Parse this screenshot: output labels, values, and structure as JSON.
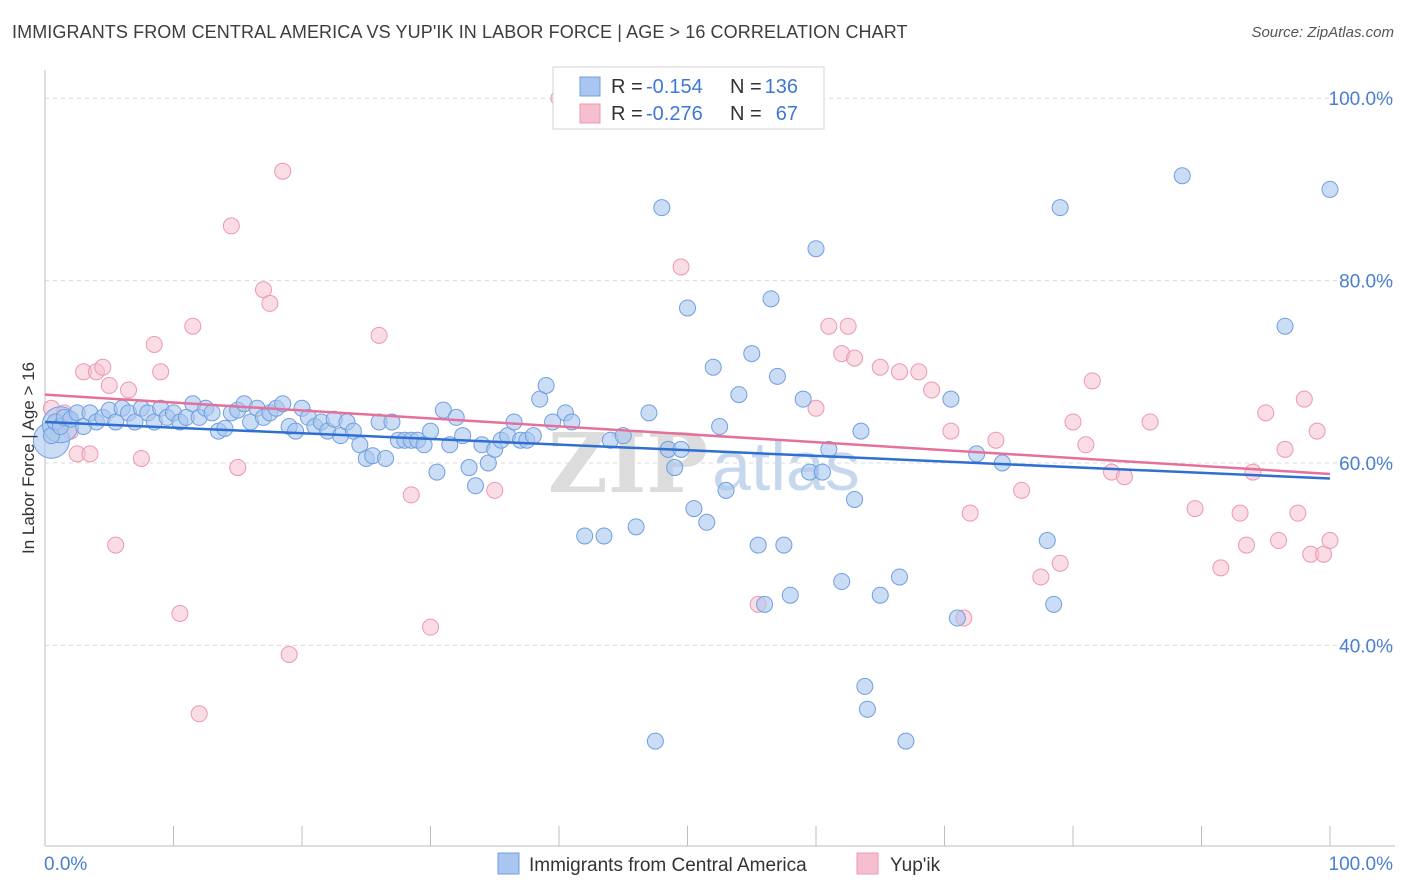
{
  "header": {
    "title": "IMMIGRANTS FROM CENTRAL AMERICA VS YUP'IK IN LABOR FORCE | AGE > 16 CORRELATION CHART",
    "source": "Source: ZipAtlas.com"
  },
  "watermark": {
    "part1": "ZIP",
    "part2": "atlas"
  },
  "colors": {
    "blue_fill": "#a8c6ef",
    "blue_stroke": "#6f9fe0",
    "blue_line": "#2f6fd0",
    "pink_fill": "#f6bfd0",
    "pink_stroke": "#ec98b2",
    "pink_line": "#e5709a",
    "grid": "#dadada",
    "tick_label": "#4a7fd0"
  },
  "legend": {
    "rows": [
      {
        "r_label": "R =",
        "r_value": "-0.154",
        "n_label": "N =",
        "n_value": "136"
      },
      {
        "r_label": "R =",
        "r_value": "-0.276",
        "n_label": "N =",
        "n_value": "67"
      }
    ]
  },
  "chart_data": {
    "type": "scatter",
    "title": "IMMIGRANTS FROM CENTRAL AMERICA VS YUP'IK IN LABOR FORCE | AGE > 16 CORRELATION CHART",
    "xlabel": "",
    "ylabel": "In Labor Force | Age > 16",
    "xlim": [
      0,
      100
    ],
    "ylim": [
      18,
      102
    ],
    "x_tick_labels": [
      "0.0%",
      "100.0%"
    ],
    "y_ticks": [
      40,
      60,
      80,
      100
    ],
    "y_tick_labels": [
      "40.0%",
      "60.0%",
      "80.0%",
      "100.0%"
    ],
    "grid": true,
    "legend_position": "top-center",
    "series": [
      {
        "name": "Immigrants from Central America",
        "color": "#a8c6ef",
        "trend": {
          "x": [
            0,
            100
          ],
          "y": [
            64.5,
            58.3
          ]
        },
        "points": [
          [
            0.5,
            63.0
          ],
          [
            0.8,
            64.5
          ],
          [
            1.2,
            64.0
          ],
          [
            1.5,
            65.0
          ],
          [
            2.0,
            64.8
          ],
          [
            2.5,
            65.5
          ],
          [
            3.0,
            64.0
          ],
          [
            3.5,
            65.5
          ],
          [
            4.0,
            64.5
          ],
          [
            4.5,
            65.0
          ],
          [
            5.0,
            65.8
          ],
          [
            5.5,
            64.5
          ],
          [
            6.0,
            66.0
          ],
          [
            6.5,
            65.5
          ],
          [
            7.0,
            64.5
          ],
          [
            7.5,
            66.0
          ],
          [
            8.0,
            65.5
          ],
          [
            8.5,
            64.5
          ],
          [
            9.0,
            66.0
          ],
          [
            9.5,
            65.0
          ],
          [
            10.0,
            65.5
          ],
          [
            10.5,
            64.5
          ],
          [
            11.0,
            65.0
          ],
          [
            11.5,
            66.5
          ],
          [
            12.0,
            65.0
          ],
          [
            12.5,
            66.0
          ],
          [
            13.0,
            65.5
          ],
          [
            13.5,
            63.5
          ],
          [
            14.0,
            63.8
          ],
          [
            14.5,
            65.5
          ],
          [
            15.0,
            65.8
          ],
          [
            15.5,
            66.5
          ],
          [
            16.0,
            64.5
          ],
          [
            16.5,
            66.0
          ],
          [
            17.0,
            65.0
          ],
          [
            17.5,
            65.5
          ],
          [
            18.0,
            66.0
          ],
          [
            18.5,
            66.5
          ],
          [
            19.0,
            64.0
          ],
          [
            19.5,
            63.5
          ],
          [
            20.0,
            66.0
          ],
          [
            20.5,
            65.0
          ],
          [
            21.0,
            64.0
          ],
          [
            21.5,
            64.5
          ],
          [
            22.0,
            63.5
          ],
          [
            22.5,
            64.8
          ],
          [
            23.0,
            63.0
          ],
          [
            23.5,
            64.5
          ],
          [
            24.0,
            63.5
          ],
          [
            24.5,
            62.0
          ],
          [
            25.0,
            60.5
          ],
          [
            25.5,
            60.8
          ],
          [
            26.0,
            64.5
          ],
          [
            26.5,
            60.5
          ],
          [
            27.0,
            64.5
          ],
          [
            27.5,
            62.5
          ],
          [
            28.0,
            62.5
          ],
          [
            28.5,
            62.5
          ],
          [
            29.0,
            62.5
          ],
          [
            29.5,
            62.0
          ],
          [
            30.0,
            63.5
          ],
          [
            30.5,
            59.0
          ],
          [
            31.0,
            65.8
          ],
          [
            31.5,
            62.0
          ],
          [
            32.0,
            65.0
          ],
          [
            32.5,
            63.0
          ],
          [
            33.0,
            59.5
          ],
          [
            33.5,
            57.5
          ],
          [
            34.0,
            62.0
          ],
          [
            34.5,
            60.0
          ],
          [
            35.0,
            61.5
          ],
          [
            35.5,
            62.5
          ],
          [
            36.0,
            63.0
          ],
          [
            36.5,
            64.5
          ],
          [
            37.0,
            62.5
          ],
          [
            37.5,
            62.5
          ],
          [
            38.0,
            63.0
          ],
          [
            38.5,
            67.0
          ],
          [
            39.0,
            68.5
          ],
          [
            39.5,
            64.5
          ],
          [
            40.5,
            65.5
          ],
          [
            41.0,
            64.5
          ],
          [
            42.0,
            52.0
          ],
          [
            43.5,
            52.0
          ],
          [
            44.0,
            62.5
          ],
          [
            45.0,
            63.0
          ],
          [
            46.0,
            53.0
          ],
          [
            47.0,
            65.5
          ],
          [
            47.5,
            29.5
          ],
          [
            48.0,
            88.0
          ],
          [
            48.5,
            61.5
          ],
          [
            49.0,
            59.5
          ],
          [
            49.5,
            61.5
          ],
          [
            50.0,
            77.0
          ],
          [
            50.5,
            55.0
          ],
          [
            51.5,
            53.5
          ],
          [
            52.0,
            70.5
          ],
          [
            52.5,
            64.0
          ],
          [
            53.0,
            57.0
          ],
          [
            54.0,
            67.5
          ],
          [
            55.0,
            72.0
          ],
          [
            55.5,
            51.0
          ],
          [
            56.0,
            44.5
          ],
          [
            56.5,
            78.0
          ],
          [
            57.0,
            69.5
          ],
          [
            57.5,
            51.0
          ],
          [
            58.0,
            45.5
          ],
          [
            59.0,
            67.0
          ],
          [
            59.5,
            59.0
          ],
          [
            60.0,
            83.5
          ],
          [
            60.5,
            59.0
          ],
          [
            61.0,
            61.5
          ],
          [
            62.0,
            47.0
          ],
          [
            63.0,
            56.0
          ],
          [
            63.5,
            63.5
          ],
          [
            63.8,
            35.5
          ],
          [
            64.0,
            33.0
          ],
          [
            65.0,
            45.5
          ],
          [
            66.5,
            47.5
          ],
          [
            67.0,
            29.5
          ],
          [
            70.5,
            67.0
          ],
          [
            71.0,
            43.0
          ],
          [
            72.5,
            61.0
          ],
          [
            74.5,
            60.0
          ],
          [
            78.0,
            51.5
          ],
          [
            78.5,
            44.5
          ],
          [
            79.0,
            88.0
          ],
          [
            88.5,
            91.5
          ],
          [
            96.5,
            75.0
          ],
          [
            100.0,
            90.0
          ]
        ],
        "large_points": [
          [
            0.5,
            62.5
          ],
          [
            1.2,
            64.2
          ]
        ]
      },
      {
        "name": "Yup'ik",
        "color": "#f6bfd0",
        "trend": {
          "x": [
            0,
            100
          ],
          "y": [
            67.5,
            58.8
          ]
        },
        "points": [
          [
            0.5,
            66.0
          ],
          [
            1.0,
            64.5
          ],
          [
            1.5,
            65.5
          ],
          [
            2.0,
            63.5
          ],
          [
            2.5,
            61.0
          ],
          [
            3.0,
            70.0
          ],
          [
            3.5,
            61.0
          ],
          [
            4.0,
            70.0
          ],
          [
            4.5,
            70.5
          ],
          [
            5.0,
            68.5
          ],
          [
            5.5,
            51.0
          ],
          [
            6.5,
            68.0
          ],
          [
            7.5,
            60.5
          ],
          [
            8.5,
            73.0
          ],
          [
            9.0,
            70.0
          ],
          [
            10.5,
            43.5
          ],
          [
            11.5,
            75.0
          ],
          [
            12.0,
            32.5
          ],
          [
            14.5,
            86.0
          ],
          [
            15.0,
            59.5
          ],
          [
            17.0,
            79.0
          ],
          [
            17.5,
            77.5
          ],
          [
            18.5,
            92.0
          ],
          [
            19.0,
            39.0
          ],
          [
            26.0,
            74.0
          ],
          [
            28.5,
            56.5
          ],
          [
            30.0,
            42.0
          ],
          [
            35.0,
            57.0
          ],
          [
            49.5,
            81.5
          ],
          [
            55.5,
            44.5
          ],
          [
            60.0,
            66.0
          ],
          [
            61.0,
            75.0
          ],
          [
            62.0,
            72.0
          ],
          [
            62.5,
            75.0
          ],
          [
            63.0,
            71.5
          ],
          [
            65.0,
            70.5
          ],
          [
            66.5,
            70.0
          ],
          [
            68.0,
            70.0
          ],
          [
            69.0,
            68.0
          ],
          [
            70.5,
            63.5
          ],
          [
            71.5,
            43.0
          ],
          [
            72.0,
            54.5
          ],
          [
            74.0,
            62.5
          ],
          [
            76.0,
            57.0
          ],
          [
            77.5,
            47.5
          ],
          [
            79.0,
            49.0
          ],
          [
            80.0,
            64.5
          ],
          [
            81.0,
            62.0
          ],
          [
            81.5,
            69.0
          ],
          [
            83.0,
            59.0
          ],
          [
            84.0,
            58.5
          ],
          [
            86.0,
            64.5
          ],
          [
            89.5,
            55.0
          ],
          [
            91.5,
            48.5
          ],
          [
            93.0,
            54.5
          ],
          [
            93.5,
            51.0
          ],
          [
            94.0,
            59.0
          ],
          [
            95.0,
            65.5
          ],
          [
            96.0,
            51.5
          ],
          [
            96.5,
            61.5
          ],
          [
            97.5,
            54.5
          ],
          [
            98.0,
            67.0
          ],
          [
            98.5,
            50.0
          ],
          [
            99.0,
            63.5
          ],
          [
            99.5,
            50.0
          ],
          [
            100.0,
            51.5
          ],
          [
            40.0,
            100.0
          ]
        ]
      }
    ]
  },
  "bottom_legend": {
    "items": [
      {
        "label": "Immigrants from Central America"
      },
      {
        "label": "Yup'ik"
      }
    ]
  },
  "axes": {
    "x_min_label": "0.0%",
    "x_max_label": "100.0%",
    "y_title": "In Labor Force | Age > 16"
  }
}
